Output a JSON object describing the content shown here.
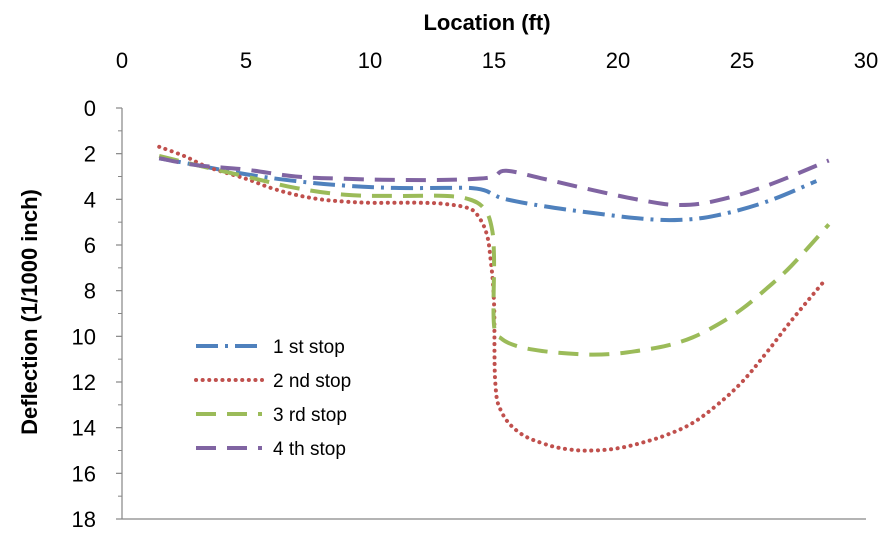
{
  "chart_data": {
    "type": "line",
    "title": "",
    "xlabel": "Location (ft)",
    "ylabel": "Deflection (1/1000 inch)",
    "xlim": [
      0,
      30
    ],
    "ylim": [
      0,
      18
    ],
    "y_inverted": true,
    "x_axis_position": "top",
    "x_ticks": [
      0,
      5,
      10,
      15,
      20,
      25,
      30
    ],
    "y_ticks": [
      0,
      2,
      4,
      6,
      8,
      10,
      12,
      14,
      16,
      18
    ],
    "grid": false,
    "legend_position": "left-center",
    "series": [
      {
        "name": "1 st stop",
        "color": "#4f81bd",
        "style": "dash-dot",
        "x": [
          1.5,
          3,
          5,
          7,
          9,
          11,
          13,
          14,
          14.6,
          15,
          15.5,
          17,
          19,
          21,
          22.5,
          24,
          26,
          28
        ],
        "y": [
          2.2,
          2.5,
          2.9,
          3.2,
          3.4,
          3.5,
          3.5,
          3.5,
          3.6,
          3.8,
          4.0,
          4.3,
          4.6,
          4.85,
          4.9,
          4.7,
          4.1,
          3.2
        ]
      },
      {
        "name": "2 nd stop",
        "color": "#c0504d",
        "style": "dotted",
        "x": [
          1.5,
          2.5,
          3.5,
          5,
          6,
          7,
          8,
          9,
          10,
          11,
          12,
          13,
          14,
          14.4,
          14.7,
          14.85,
          15,
          15.05,
          15.3,
          16,
          17,
          18,
          19,
          20,
          21,
          22,
          23,
          24,
          25,
          26,
          27,
          28.3
        ],
        "y": [
          1.7,
          2.1,
          2.6,
          3.1,
          3.5,
          3.8,
          4.0,
          4.1,
          4.15,
          4.15,
          4.15,
          4.2,
          4.4,
          4.8,
          5.5,
          6.5,
          8.5,
          12.0,
          13.3,
          14.2,
          14.7,
          14.95,
          15.0,
          14.9,
          14.65,
          14.3,
          13.8,
          13.0,
          12.0,
          10.7,
          9.3,
          7.6
        ]
      },
      {
        "name": "3 rd stop",
        "color": "#9bbb59",
        "style": "dashed",
        "x": [
          1.5,
          3,
          5,
          7,
          9,
          11,
          13,
          14,
          14.6,
          14.9,
          15,
          15,
          15.3,
          16,
          17,
          18,
          19,
          20,
          21,
          22,
          23,
          24,
          25,
          26,
          27,
          28.5
        ],
        "y": [
          2.1,
          2.5,
          3.0,
          3.5,
          3.8,
          3.85,
          3.85,
          4.0,
          4.4,
          5.2,
          6.5,
          9.5,
          10.1,
          10.45,
          10.65,
          10.75,
          10.8,
          10.75,
          10.6,
          10.4,
          10.05,
          9.5,
          8.8,
          7.9,
          6.9,
          5.1
        ]
      },
      {
        "name": "4 th stop",
        "color": "#8064a2",
        "style": "dashed",
        "x": [
          1.5,
          3,
          5,
          7,
          9,
          11,
          13,
          14.3,
          15,
          15.5,
          17,
          19,
          21,
          22.5,
          24,
          26,
          28.5
        ],
        "y": [
          2.2,
          2.5,
          2.7,
          3.0,
          3.1,
          3.15,
          3.15,
          3.1,
          3.0,
          2.75,
          3.1,
          3.6,
          4.05,
          4.25,
          4.05,
          3.4,
          2.3
        ]
      }
    ]
  }
}
